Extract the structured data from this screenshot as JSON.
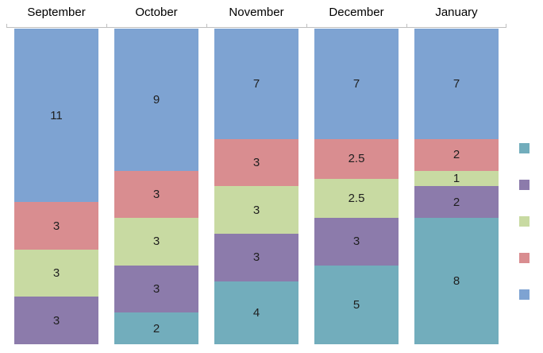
{
  "chart_data": {
    "type": "bar",
    "subtype": "100-percent-stacked-column",
    "title": "",
    "xlabel": "",
    "ylabel": "",
    "grid": false,
    "legend_position": "right",
    "categories": [
      "September",
      "October",
      "November",
      "December",
      "January"
    ],
    "stack_total": 20,
    "series": [
      {
        "name": "blue",
        "color": "#7ea3d2",
        "values": [
          11,
          9,
          7,
          7,
          7
        ]
      },
      {
        "name": "pink",
        "color": "#d98d90",
        "values": [
          3,
          3,
          3,
          2.5,
          2
        ]
      },
      {
        "name": "green",
        "color": "#c8daa2",
        "values": [
          3,
          3,
          3,
          2.5,
          1
        ]
      },
      {
        "name": "purple",
        "color": "#8c7bab",
        "values": [
          3,
          3,
          3,
          3,
          2
        ]
      },
      {
        "name": "teal",
        "color": "#72adbc",
        "values": [
          0,
          2,
          4,
          5,
          8
        ]
      }
    ],
    "data_labels": true,
    "label_color": "#1f1f1f",
    "axis_line_color": "#bfbfbf"
  },
  "legend": {
    "items": [
      {
        "name": "teal",
        "color": "#72adbc"
      },
      {
        "name": "purple",
        "color": "#8c7bab"
      },
      {
        "name": "green",
        "color": "#c8daa2"
      },
      {
        "name": "pink",
        "color": "#d98d90"
      },
      {
        "name": "blue",
        "color": "#7ea3d2"
      }
    ]
  }
}
